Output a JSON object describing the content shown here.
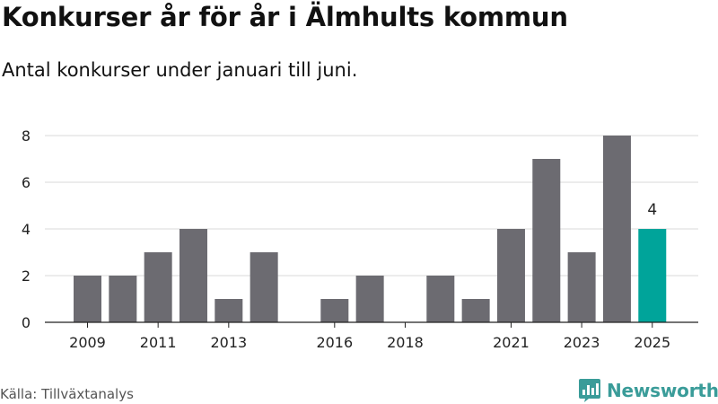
{
  "title": "Konkurser år för år i Älmhults kommun",
  "subtitle": "Antal konkurser under januari till juni.",
  "source": "Källa: Tillväxtanalys",
  "brand": {
    "name": "Newsworthy",
    "icon": "newsworthy-logo-icon"
  },
  "colors": {
    "bar": "#6c6b71",
    "highlight": "#00a49a",
    "grid": "#d9d9d9",
    "axis": "#222222",
    "text": "#222222"
  },
  "chart_data": {
    "type": "bar",
    "title": "Konkurser år för år i Älmhults kommun",
    "subtitle": "Antal konkurser under januari till juni.",
    "categories": [
      "2009",
      "2010",
      "2011",
      "2012",
      "2013",
      "2014",
      "2015",
      "2016",
      "2017",
      "2018",
      "2019",
      "2020",
      "2021",
      "2022",
      "2023",
      "2024",
      "2025"
    ],
    "values": [
      2,
      2,
      3,
      4,
      1,
      3,
      0,
      1,
      2,
      0,
      2,
      1,
      4,
      7,
      3,
      8,
      4
    ],
    "x_tick_labels": [
      "2009",
      "2011",
      "2013",
      "2016",
      "2018",
      "2021",
      "2023",
      "2025"
    ],
    "y_ticks": [
      0,
      2,
      4,
      6,
      8
    ],
    "ylim": [
      0,
      8
    ],
    "grid": true,
    "highlight_category": "2025",
    "data_labels": [
      {
        "category": "2025",
        "text": "4"
      }
    ]
  }
}
